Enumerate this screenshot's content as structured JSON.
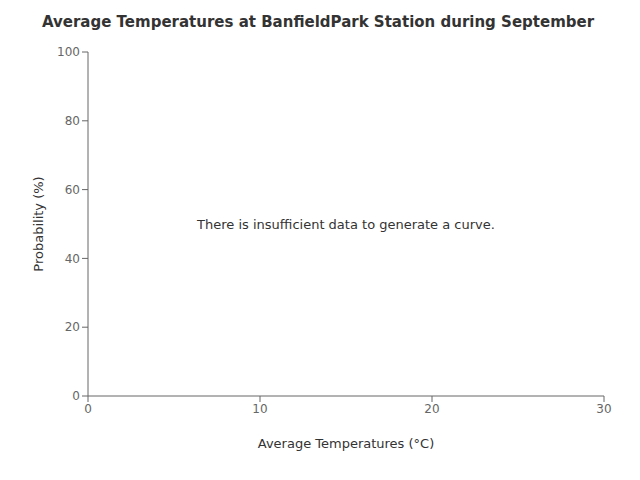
{
  "chart_data": {
    "type": "scatter",
    "title": "Average Temperatures at BanfieldPark Station during September",
    "xlabel": "Average Temperatures (°C)",
    "ylabel": "Probability (%)",
    "xlim": [
      0,
      30
    ],
    "ylim": [
      0,
      100
    ],
    "xticks": [
      0,
      10,
      20,
      30
    ],
    "yticks": [
      0,
      20,
      40,
      60,
      80,
      100
    ],
    "annotation": "There is insufficient data to generate a curve."
  }
}
